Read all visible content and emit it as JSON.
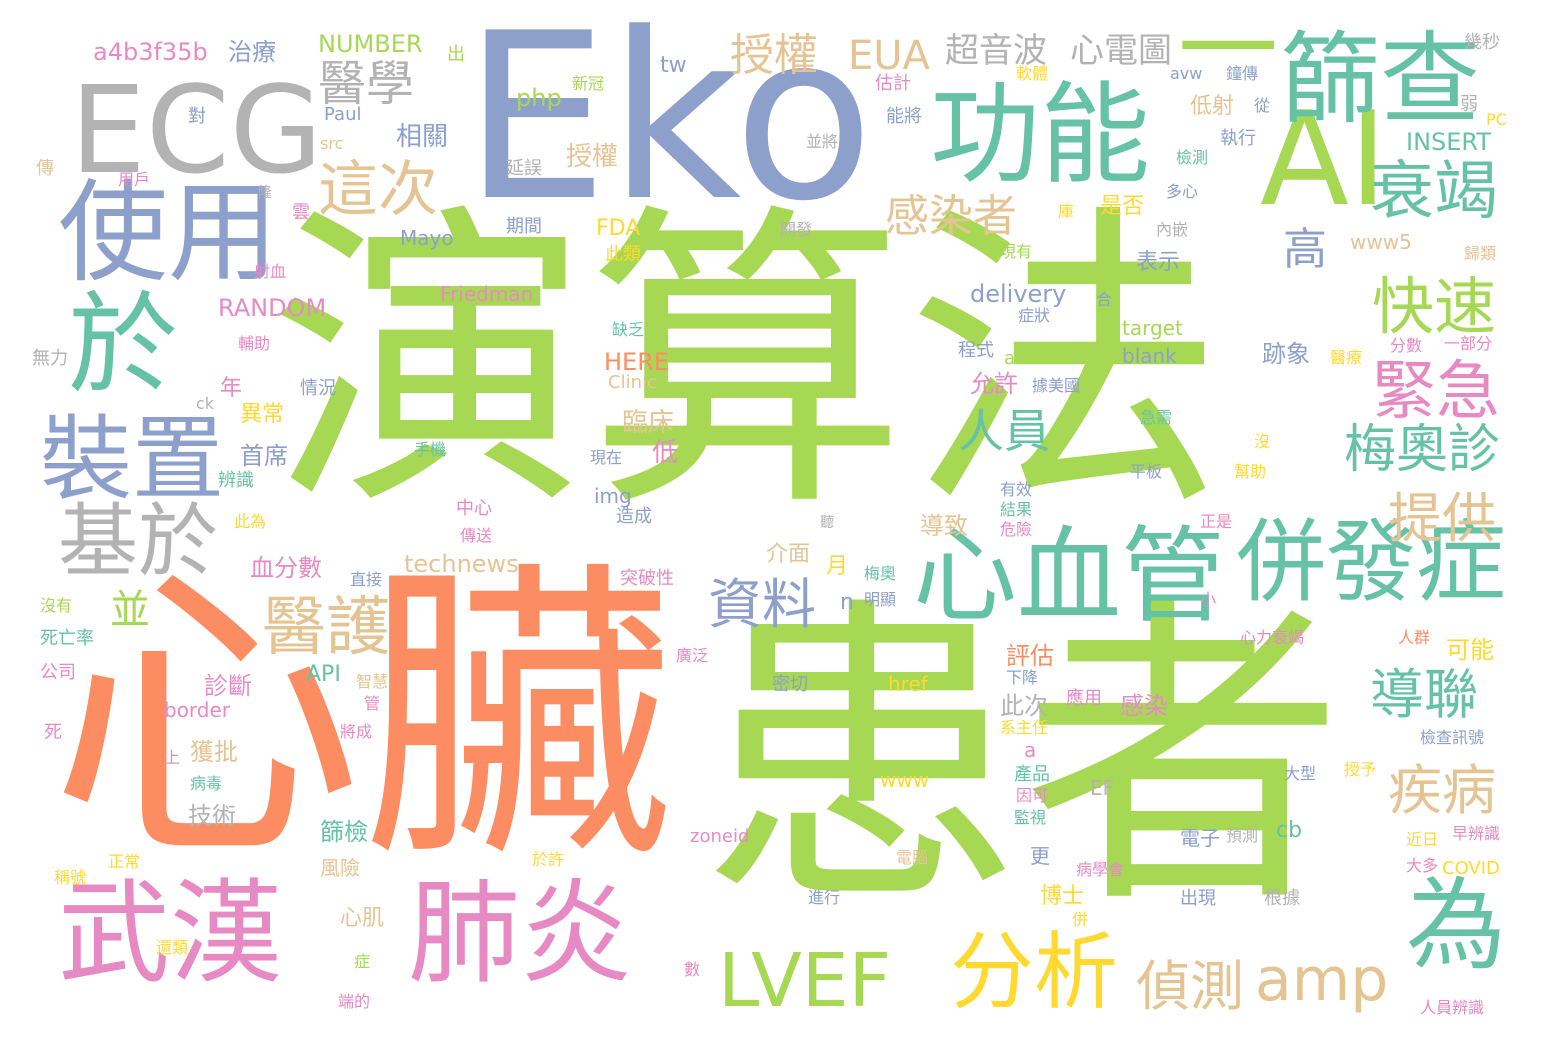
{
  "colors": {
    "green": "#a6d854",
    "orange": "#fc8d62",
    "blue": "#8da0cb",
    "gray": "#b3b3b3",
    "teal": "#66c2a5",
    "pink": "#e78ac3",
    "tan": "#e5c494",
    "yellow": "#ffd92f"
  },
  "words": [
    {
      "text": "演算法",
      "color": "green"
    },
    {
      "text": "心臟",
      "color": "orange"
    },
    {
      "text": "患者",
      "color": "green"
    },
    {
      "text": "Eko",
      "color": "blue"
    },
    {
      "text": "ECG",
      "color": "gray"
    },
    {
      "text": "AI",
      "color": "green"
    },
    {
      "text": "功能",
      "color": "teal"
    },
    {
      "text": "一",
      "color": "green"
    },
    {
      "text": "篩查",
      "color": "teal"
    },
    {
      "text": "使用",
      "color": "blue"
    },
    {
      "text": "於",
      "color": "teal"
    },
    {
      "text": "裝置",
      "color": "blue"
    },
    {
      "text": "基於",
      "color": "gray"
    },
    {
      "text": "武漢",
      "color": "pink"
    },
    {
      "text": "肺炎",
      "color": "pink"
    },
    {
      "text": "心血管",
      "color": "teal"
    },
    {
      "text": "併發症",
      "color": "teal"
    },
    {
      "text": "為",
      "color": "teal"
    },
    {
      "text": "LVEF",
      "color": "green"
    },
    {
      "text": "分析",
      "color": "yellow"
    },
    {
      "text": "amp",
      "color": "tan"
    },
    {
      "text": "偵測",
      "color": "tan"
    },
    {
      "text": "醫護",
      "color": "tan"
    },
    {
      "text": "資料",
      "color": "blue"
    },
    {
      "text": "衰竭",
      "color": "teal"
    },
    {
      "text": "快速",
      "color": "green"
    },
    {
      "text": "緊急",
      "color": "pink"
    },
    {
      "text": "梅奧診",
      "color": "teal"
    },
    {
      "text": "提供",
      "color": "tan"
    },
    {
      "text": "導聯",
      "color": "teal"
    },
    {
      "text": "疾病",
      "color": "tan"
    },
    {
      "text": "這次",
      "color": "tan"
    },
    {
      "text": "醫學",
      "color": "gray"
    },
    {
      "text": "授權",
      "color": "tan"
    },
    {
      "text": "EUA",
      "color": "tan"
    },
    {
      "text": "超音波",
      "color": "gray"
    },
    {
      "text": "心電圖",
      "color": "gray"
    },
    {
      "text": "感染者",
      "color": "tan"
    },
    {
      "text": "高",
      "color": "blue"
    },
    {
      "text": "人員",
      "color": "teal"
    },
    {
      "text": "並",
      "color": "green"
    },
    {
      "text": "a4b3f35b",
      "color": "pink"
    },
    {
      "text": "治療",
      "color": "blue"
    },
    {
      "text": "NUMBER",
      "color": "green"
    },
    {
      "text": "出",
      "color": "green"
    },
    {
      "text": "tw",
      "color": "blue"
    },
    {
      "text": "php",
      "color": "green"
    },
    {
      "text": "新冠",
      "color": "green"
    },
    {
      "text": "估計",
      "color": "pink"
    },
    {
      "text": "能將",
      "color": "blue"
    },
    {
      "text": "軟體",
      "color": "yellow"
    },
    {
      "text": "avw",
      "color": "blue"
    },
    {
      "text": "鐘傳",
      "color": "blue"
    },
    {
      "text": "幾秒",
      "color": "gray"
    },
    {
      "text": "低射",
      "color": "tan"
    },
    {
      "text": "從",
      "color": "blue"
    },
    {
      "text": "弱",
      "color": "gray"
    },
    {
      "text": "PC",
      "color": "yellow"
    },
    {
      "text": "INSERT",
      "color": "teal"
    },
    {
      "text": "執行",
      "color": "blue"
    },
    {
      "text": "檢測",
      "color": "teal"
    },
    {
      "text": "相關",
      "color": "blue"
    },
    {
      "text": "Paul",
      "color": "blue"
    },
    {
      "text": "src",
      "color": "tan"
    },
    {
      "text": "授權",
      "color": "tan"
    },
    {
      "text": "延誤",
      "color": "gray"
    },
    {
      "text": "並將",
      "color": "gray"
    },
    {
      "text": "是否",
      "color": "yellow"
    },
    {
      "text": "多心",
      "color": "blue"
    },
    {
      "text": "內嵌",
      "color": "gray"
    },
    {
      "text": "FDA",
      "color": "yellow"
    },
    {
      "text": "Mayo",
      "color": "blue"
    },
    {
      "text": "期間",
      "color": "blue"
    },
    {
      "text": "開發",
      "color": "gray"
    },
    {
      "text": "www5",
      "color": "tan"
    },
    {
      "text": "歸類",
      "color": "tan"
    },
    {
      "text": "現有",
      "color": "green"
    },
    {
      "text": "此類",
      "color": "yellow"
    },
    {
      "text": "表示",
      "color": "blue"
    },
    {
      "text": "Friedman",
      "color": "pink"
    },
    {
      "text": "delivery",
      "color": "blue"
    },
    {
      "text": "合",
      "color": "blue"
    },
    {
      "text": "RANDOM",
      "color": "pink"
    },
    {
      "text": "症狀",
      "color": "blue"
    },
    {
      "text": "target",
      "color": "green"
    },
    {
      "text": "程式",
      "color": "blue"
    },
    {
      "text": "alt",
      "color": "green"
    },
    {
      "text": "blank",
      "color": "blue"
    },
    {
      "text": "分數",
      "color": "pink"
    },
    {
      "text": "一部分",
      "color": "pink"
    },
    {
      "text": "醫療",
      "color": "yellow"
    },
    {
      "text": "跡象",
      "color": "blue"
    },
    {
      "text": "HERE",
      "color": "orange"
    },
    {
      "text": "Clinic",
      "color": "tan"
    },
    {
      "text": "缺乏",
      "color": "teal"
    },
    {
      "text": "據美國",
      "color": "blue"
    },
    {
      "text": "允許",
      "color": "pink"
    },
    {
      "text": "急需",
      "color": "teal"
    },
    {
      "text": "年",
      "color": "pink"
    },
    {
      "text": "情況",
      "color": "blue"
    },
    {
      "text": "異常",
      "color": "yellow"
    },
    {
      "text": "臨床",
      "color": "tan"
    },
    {
      "text": "低",
      "color": "pink"
    },
    {
      "text": "首席",
      "color": "blue"
    },
    {
      "text": "手機",
      "color": "teal"
    },
    {
      "text": "現在",
      "color": "blue"
    },
    {
      "text": "平板",
      "color": "blue"
    },
    {
      "text": "幫助",
      "color": "yellow"
    },
    {
      "text": "無力",
      "color": "gray"
    },
    {
      "text": "辨識",
      "color": "teal"
    },
    {
      "text": "ck",
      "color": "gray"
    },
    {
      "text": "img",
      "color": "blue"
    },
    {
      "text": "有效",
      "color": "blue"
    },
    {
      "text": "結果",
      "color": "teal"
    },
    {
      "text": "中心",
      "color": "pink"
    },
    {
      "text": "造成",
      "color": "blue"
    },
    {
      "text": "導致",
      "color": "tan"
    },
    {
      "text": "危險",
      "color": "pink"
    },
    {
      "text": "正是",
      "color": "pink"
    },
    {
      "text": "傳送",
      "color": "pink"
    },
    {
      "text": "介面",
      "color": "tan"
    },
    {
      "text": "technews",
      "color": "tan"
    },
    {
      "text": "血分數",
      "color": "pink"
    },
    {
      "text": "月",
      "color": "yellow"
    },
    {
      "text": "梅奧",
      "color": "teal"
    },
    {
      "text": "突破性",
      "color": "pink"
    },
    {
      "text": "明顯",
      "color": "blue"
    },
    {
      "text": "n",
      "color": "blue"
    },
    {
      "text": "小",
      "color": "pink"
    },
    {
      "text": "心力衰竭",
      "color": "pink"
    },
    {
      "text": "人群",
      "color": "orange"
    },
    {
      "text": "可能",
      "color": "yellow"
    },
    {
      "text": "評估",
      "color": "orange"
    },
    {
      "text": "下降",
      "color": "blue"
    },
    {
      "text": "API",
      "color": "teal"
    },
    {
      "text": "診斷",
      "color": "pink"
    },
    {
      "text": "智慧",
      "color": "tan"
    },
    {
      "text": "密切",
      "color": "blue"
    },
    {
      "text": "href",
      "color": "yellow"
    },
    {
      "text": "應用",
      "color": "pink"
    },
    {
      "text": "感染",
      "color": "pink"
    },
    {
      "text": "border",
      "color": "pink"
    },
    {
      "text": "此次",
      "color": "gray"
    },
    {
      "text": "系主任",
      "color": "yellow"
    },
    {
      "text": "將成",
      "color": "pink"
    },
    {
      "text": "獲批",
      "color": "tan"
    },
    {
      "text": "www",
      "color": "yellow"
    },
    {
      "text": "產品",
      "color": "teal"
    },
    {
      "text": "大型",
      "color": "blue"
    },
    {
      "text": "授予",
      "color": "yellow"
    },
    {
      "text": "檢查訊號",
      "color": "blue"
    },
    {
      "text": "病毒",
      "color": "teal"
    },
    {
      "text": "技術",
      "color": "gray"
    },
    {
      "text": "因可",
      "color": "pink"
    },
    {
      "text": "EF",
      "color": "gray"
    },
    {
      "text": "監視",
      "color": "teal"
    },
    {
      "text": "篩檢",
      "color": "teal"
    },
    {
      "text": "zoneid",
      "color": "pink"
    },
    {
      "text": "電子",
      "color": "blue"
    },
    {
      "text": "預測",
      "color": "gray"
    },
    {
      "text": "cb",
      "color": "teal"
    },
    {
      "text": "近日",
      "color": "yellow"
    },
    {
      "text": "早辨識",
      "color": "pink"
    },
    {
      "text": "風險",
      "color": "tan"
    },
    {
      "text": "更",
      "color": "blue"
    },
    {
      "text": "電腦",
      "color": "tan"
    },
    {
      "text": "病學會",
      "color": "pink"
    },
    {
      "text": "COVID",
      "color": "yellow"
    },
    {
      "text": "心肌",
      "color": "tan"
    },
    {
      "text": "進行",
      "color": "blue"
    },
    {
      "text": "博士",
      "color": "yellow"
    },
    {
      "text": "出現",
      "color": "blue"
    },
    {
      "text": "根據",
      "color": "gray"
    },
    {
      "text": "大多",
      "color": "pink"
    },
    {
      "text": "正常",
      "color": "yellow"
    },
    {
      "text": "稱號",
      "color": "yellow"
    },
    {
      "text": "還類",
      "color": "yellow"
    },
    {
      "text": "數",
      "color": "pink"
    },
    {
      "text": "症",
      "color": "green"
    },
    {
      "text": "端的",
      "color": "pink"
    },
    {
      "text": "人員辨識",
      "color": "pink"
    },
    {
      "text": "傳",
      "color": "tan"
    },
    {
      "text": "用戶",
      "color": "pink"
    },
    {
      "text": "對",
      "color": "blue"
    },
    {
      "text": "雲",
      "color": "pink"
    },
    {
      "text": "庫",
      "color": "yellow"
    },
    {
      "text": "輔助",
      "color": "pink"
    },
    {
      "text": "射血",
      "color": "pink"
    },
    {
      "text": "沒有",
      "color": "green"
    },
    {
      "text": "死亡率",
      "color": "teal"
    },
    {
      "text": "公司",
      "color": "pink"
    },
    {
      "text": "死",
      "color": "pink"
    },
    {
      "text": "上",
      "color": "pink"
    },
    {
      "text": "此為",
      "color": "yellow"
    },
    {
      "text": "直接",
      "color": "blue"
    },
    {
      "text": "於許",
      "color": "yellow"
    },
    {
      "text": "廣泛",
      "color": "pink"
    },
    {
      "text": "聽",
      "color": "gray"
    },
    {
      "text": "管",
      "color": "pink"
    },
    {
      "text": "併",
      "color": "yellow"
    },
    {
      "text": "a",
      "color": "pink"
    },
    {
      "text": "沒",
      "color": "yellow"
    },
    {
      "text": "隆",
      "color": "gray"
    }
  ]
}
